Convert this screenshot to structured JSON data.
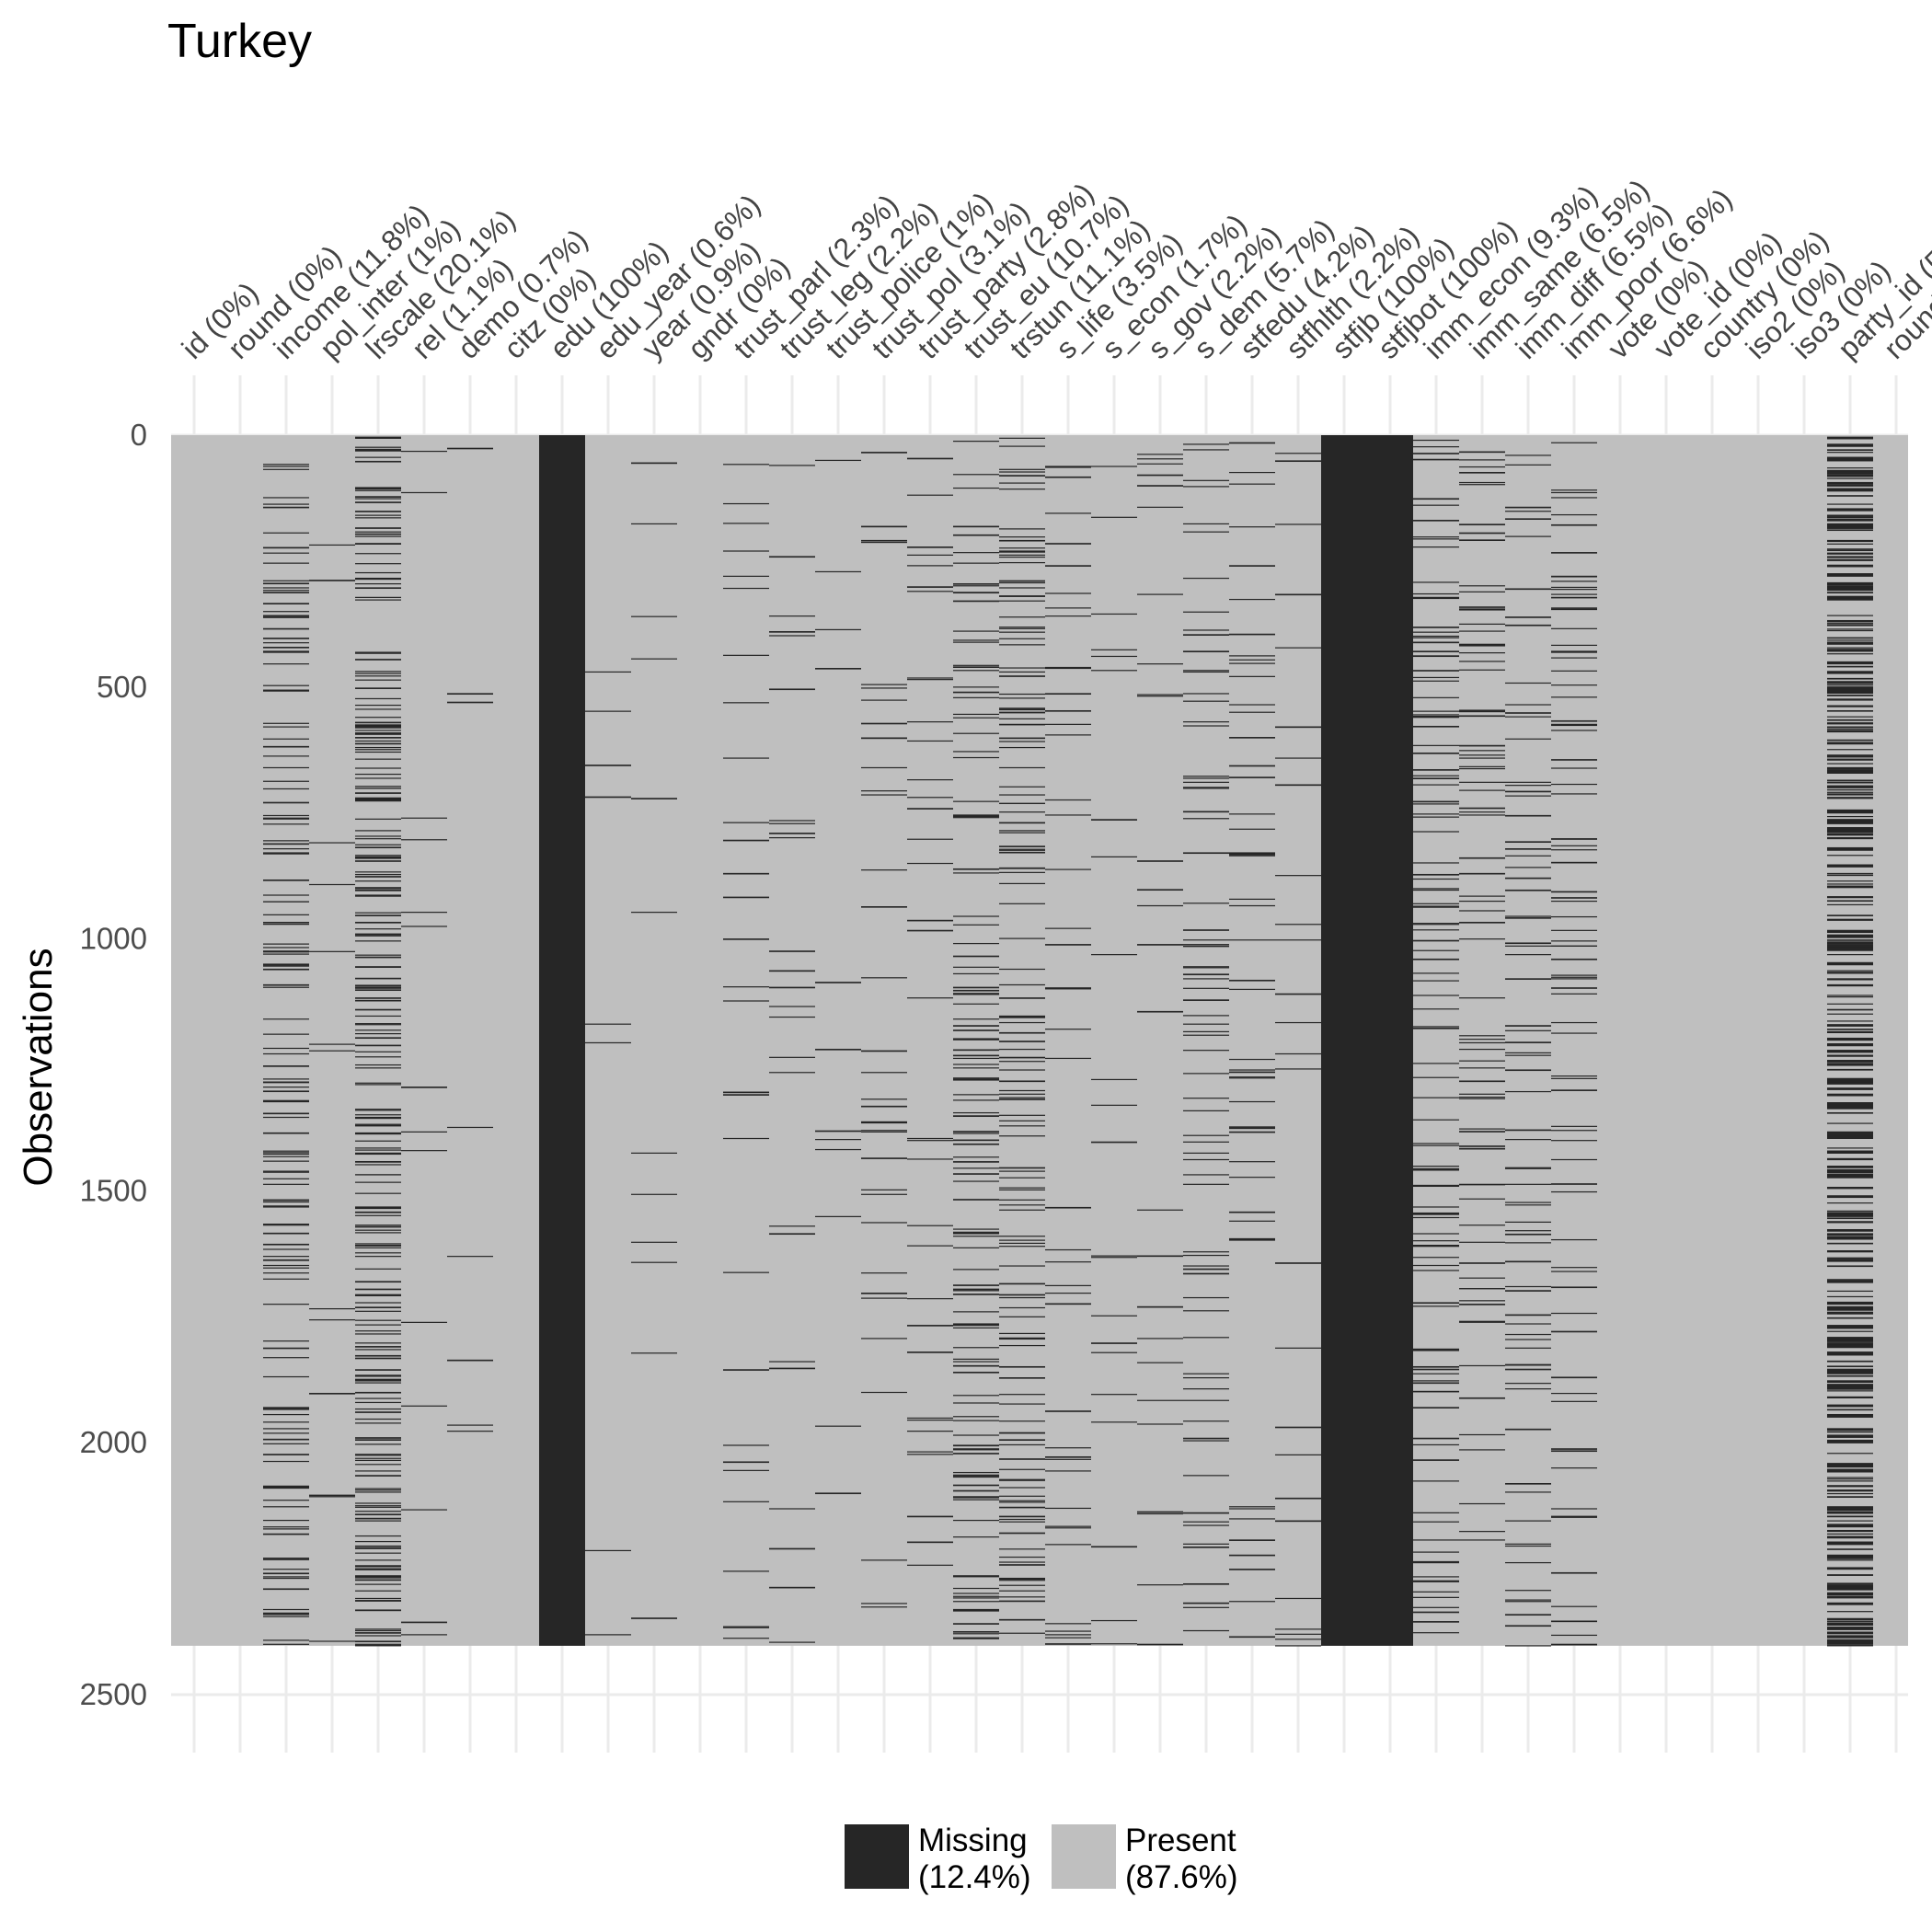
{
  "chart_data": {
    "type": "heatmap",
    "title": "Turkey",
    "xlabel": "",
    "ylabel": "Observations",
    "n_observations": 2403,
    "ylim": [
      0,
      2500
    ],
    "y_ticks": [
      "0",
      "500",
      "1000",
      "1500",
      "2000",
      "2500"
    ],
    "y_tick_values": [
      0,
      500,
      1000,
      1500,
      2000,
      2500
    ],
    "columns": [
      {
        "name": "id",
        "label": "id (0%)",
        "missing_pct": 0
      },
      {
        "name": "round",
        "label": "round (0%)",
        "missing_pct": 0
      },
      {
        "name": "income",
        "label": "income (11.8%)",
        "missing_pct": 11.8
      },
      {
        "name": "pol_inter",
        "label": "pol_inter (1%)",
        "missing_pct": 1
      },
      {
        "name": "lrscale",
        "label": "lrscale (20.1%)",
        "missing_pct": 20.1
      },
      {
        "name": "rel",
        "label": "rel (1.1%)",
        "missing_pct": 1.1
      },
      {
        "name": "demo",
        "label": "demo (0.7%)",
        "missing_pct": 0.7
      },
      {
        "name": "citz",
        "label": "citz (0%)",
        "missing_pct": 0
      },
      {
        "name": "edu",
        "label": "edu (100%)",
        "missing_pct": 100
      },
      {
        "name": "edu_year",
        "label": "edu_year (0.6%)",
        "missing_pct": 0.6
      },
      {
        "name": "year",
        "label": "year (0.9%)",
        "missing_pct": 0.9
      },
      {
        "name": "gndr",
        "label": "gndr (0%)",
        "missing_pct": 0
      },
      {
        "name": "trust_parl",
        "label": "trust_parl (2.3%)",
        "missing_pct": 2.3
      },
      {
        "name": "trust_leg",
        "label": "trust_leg (2.2%)",
        "missing_pct": 2.2
      },
      {
        "name": "trust_police",
        "label": "trust_police (1%)",
        "missing_pct": 1
      },
      {
        "name": "trust_pol",
        "label": "trust_pol (3.1%)",
        "missing_pct": 3.1
      },
      {
        "name": "trust_party",
        "label": "trust_party (2.8%)",
        "missing_pct": 2.8
      },
      {
        "name": "trust_eu",
        "label": "trust_eu (10.7%)",
        "missing_pct": 10.7
      },
      {
        "name": "trstun",
        "label": "trstun (11.1%)",
        "missing_pct": 11.1
      },
      {
        "name": "s_life",
        "label": "s_life (3.5%)",
        "missing_pct": 3.5
      },
      {
        "name": "s_econ",
        "label": "s_econ (1.7%)",
        "missing_pct": 1.7
      },
      {
        "name": "s_gov",
        "label": "s_gov (2.2%)",
        "missing_pct": 2.2
      },
      {
        "name": "s_dem",
        "label": "s_dem (5.7%)",
        "missing_pct": 5.7
      },
      {
        "name": "stfedu",
        "label": "stfedu (4.2%)",
        "missing_pct": 4.2
      },
      {
        "name": "stfhlth",
        "label": "stfhlth (2.2%)",
        "missing_pct": 2.2
      },
      {
        "name": "stfjb",
        "label": "stfjb (100%)",
        "missing_pct": 100
      },
      {
        "name": "stfjbot",
        "label": "stfjbot (100%)",
        "missing_pct": 100
      },
      {
        "name": "imm_econ",
        "label": "imm_econ (9.3%)",
        "missing_pct": 9.3
      },
      {
        "name": "imm_same",
        "label": "imm_same (6.5%)",
        "missing_pct": 6.5
      },
      {
        "name": "imm_diff",
        "label": "imm_diff (6.5%)",
        "missing_pct": 6.5
      },
      {
        "name": "imm_poor",
        "label": "imm_poor (6.6%)",
        "missing_pct": 6.6
      },
      {
        "name": "vote",
        "label": "vote (0%)",
        "missing_pct": 0
      },
      {
        "name": "vote_id",
        "label": "vote_id (0%)",
        "missing_pct": 0
      },
      {
        "name": "country",
        "label": "country (0%)",
        "missing_pct": 0
      },
      {
        "name": "iso2",
        "label": "iso2 (0%)",
        "missing_pct": 0
      },
      {
        "name": "iso3",
        "label": "iso3 (0%)",
        "missing_pct": 0
      },
      {
        "name": "party_id",
        "label": "party_id (5",
        "missing_pct": 55
      },
      {
        "name": "round_",
        "label": "round",
        "missing_pct": 0
      }
    ],
    "legend": [
      {
        "label_line1": "Missing",
        "label_line2": "(12.4%)",
        "color": "#262626",
        "pct": 12.4
      },
      {
        "label_line1": "Present",
        "label_line2": "(87.6%)",
        "color": "#bfbfbf",
        "pct": 87.6
      }
    ],
    "legend_position": "bottom",
    "grid": true
  }
}
